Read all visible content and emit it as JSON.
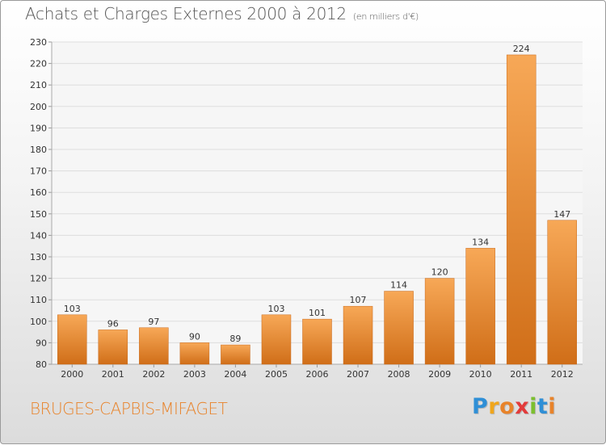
{
  "chart_data": {
    "type": "bar",
    "title": "Achats et Charges Externes 2000 à 2012",
    "subtitle": "(en milliers d'€)",
    "categories": [
      "2000",
      "2001",
      "2002",
      "2003",
      "2004",
      "2005",
      "2006",
      "2007",
      "2008",
      "2009",
      "2010",
      "2011",
      "2012"
    ],
    "values": [
      103,
      96,
      97,
      90,
      89,
      103,
      101,
      107,
      114,
      120,
      134,
      224,
      147
    ],
    "ylim": [
      80,
      230
    ],
    "yticks": [
      80,
      90,
      100,
      110,
      120,
      130,
      140,
      150,
      160,
      170,
      180,
      190,
      200,
      210,
      220,
      230
    ],
    "grid": true,
    "bar_color": "#e8832a",
    "bar_color_light": "#f7a857",
    "bar_color_dark": "#d06e18"
  },
  "footer": {
    "commune": "BRUGES-CAPBIS-MIFAGET",
    "commune_color": "#e8832a",
    "logo_letters": [
      "P",
      "r",
      "o",
      "x",
      "i",
      "t",
      "i"
    ],
    "logo_colors": [
      "#2f8fd6",
      "#f0a61c",
      "#e8832a",
      "#e23b3b",
      "#7cbf2f",
      "#2f8fd6",
      "#e8832a"
    ]
  }
}
